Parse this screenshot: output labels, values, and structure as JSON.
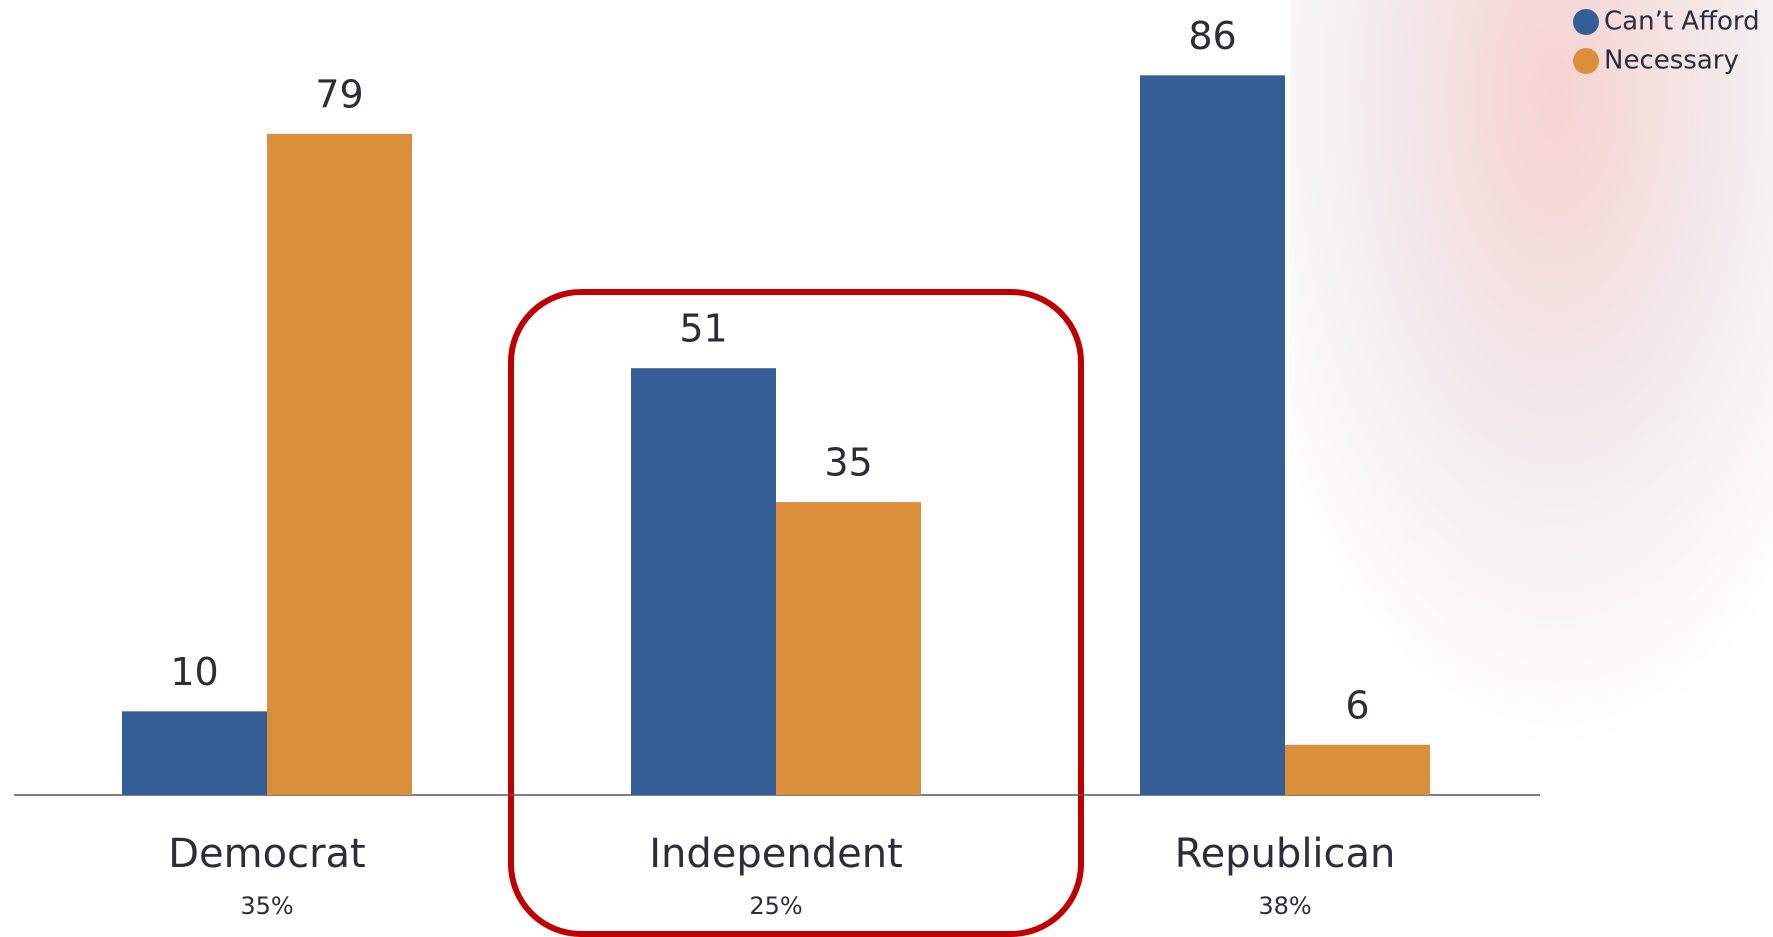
{
  "chart_data": {
    "type": "bar",
    "categories": [
      "Democrat",
      "Independent",
      "Republican"
    ],
    "category_notes": [
      "35%",
      "25%",
      "38%"
    ],
    "series": [
      {
        "name": "Can’t Afford",
        "color": "#365e96",
        "values": [
          10,
          51,
          86
        ]
      },
      {
        "name": "Necessary",
        "color": "#db8f3a",
        "values": [
          79,
          35,
          6
        ]
      }
    ],
    "ylim": [
      0,
      95
    ],
    "legend": "top-right"
  }
}
